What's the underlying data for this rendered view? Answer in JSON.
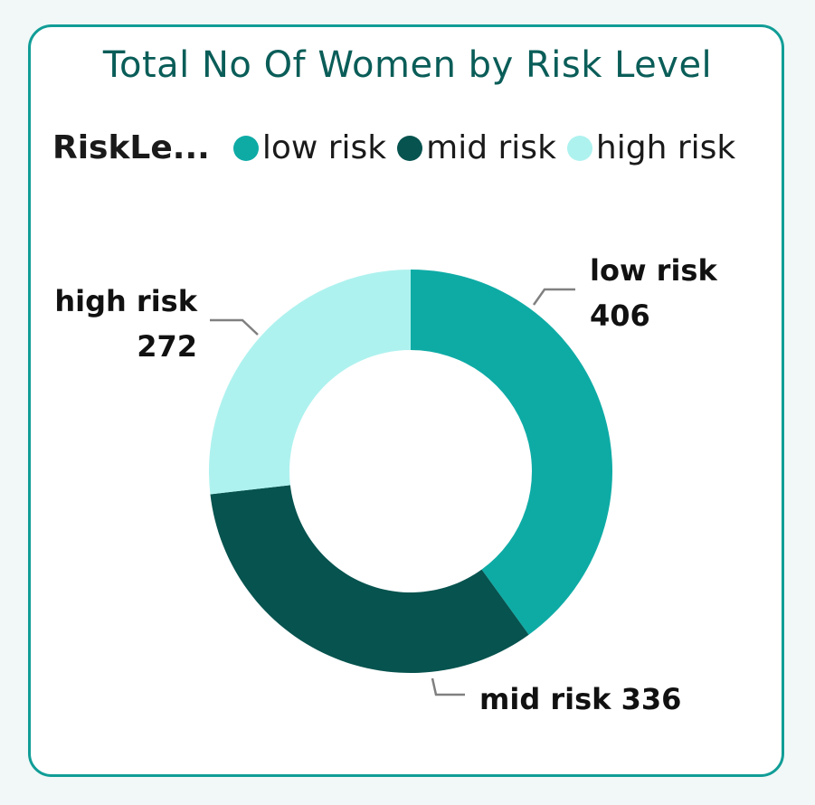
{
  "chart_data": {
    "type": "pie",
    "variant": "donut",
    "title": "Total No Of Women by Risk Level",
    "legend": {
      "title": "RiskLe...",
      "placement": "top-left"
    },
    "categories": [
      "low risk",
      "mid risk",
      "high risk"
    ],
    "values": [
      406,
      336,
      272
    ],
    "colors": [
      "#0eaba5",
      "#06534f",
      "#aef2ef"
    ],
    "data_labels": [
      "406",
      "336",
      "272"
    ]
  }
}
